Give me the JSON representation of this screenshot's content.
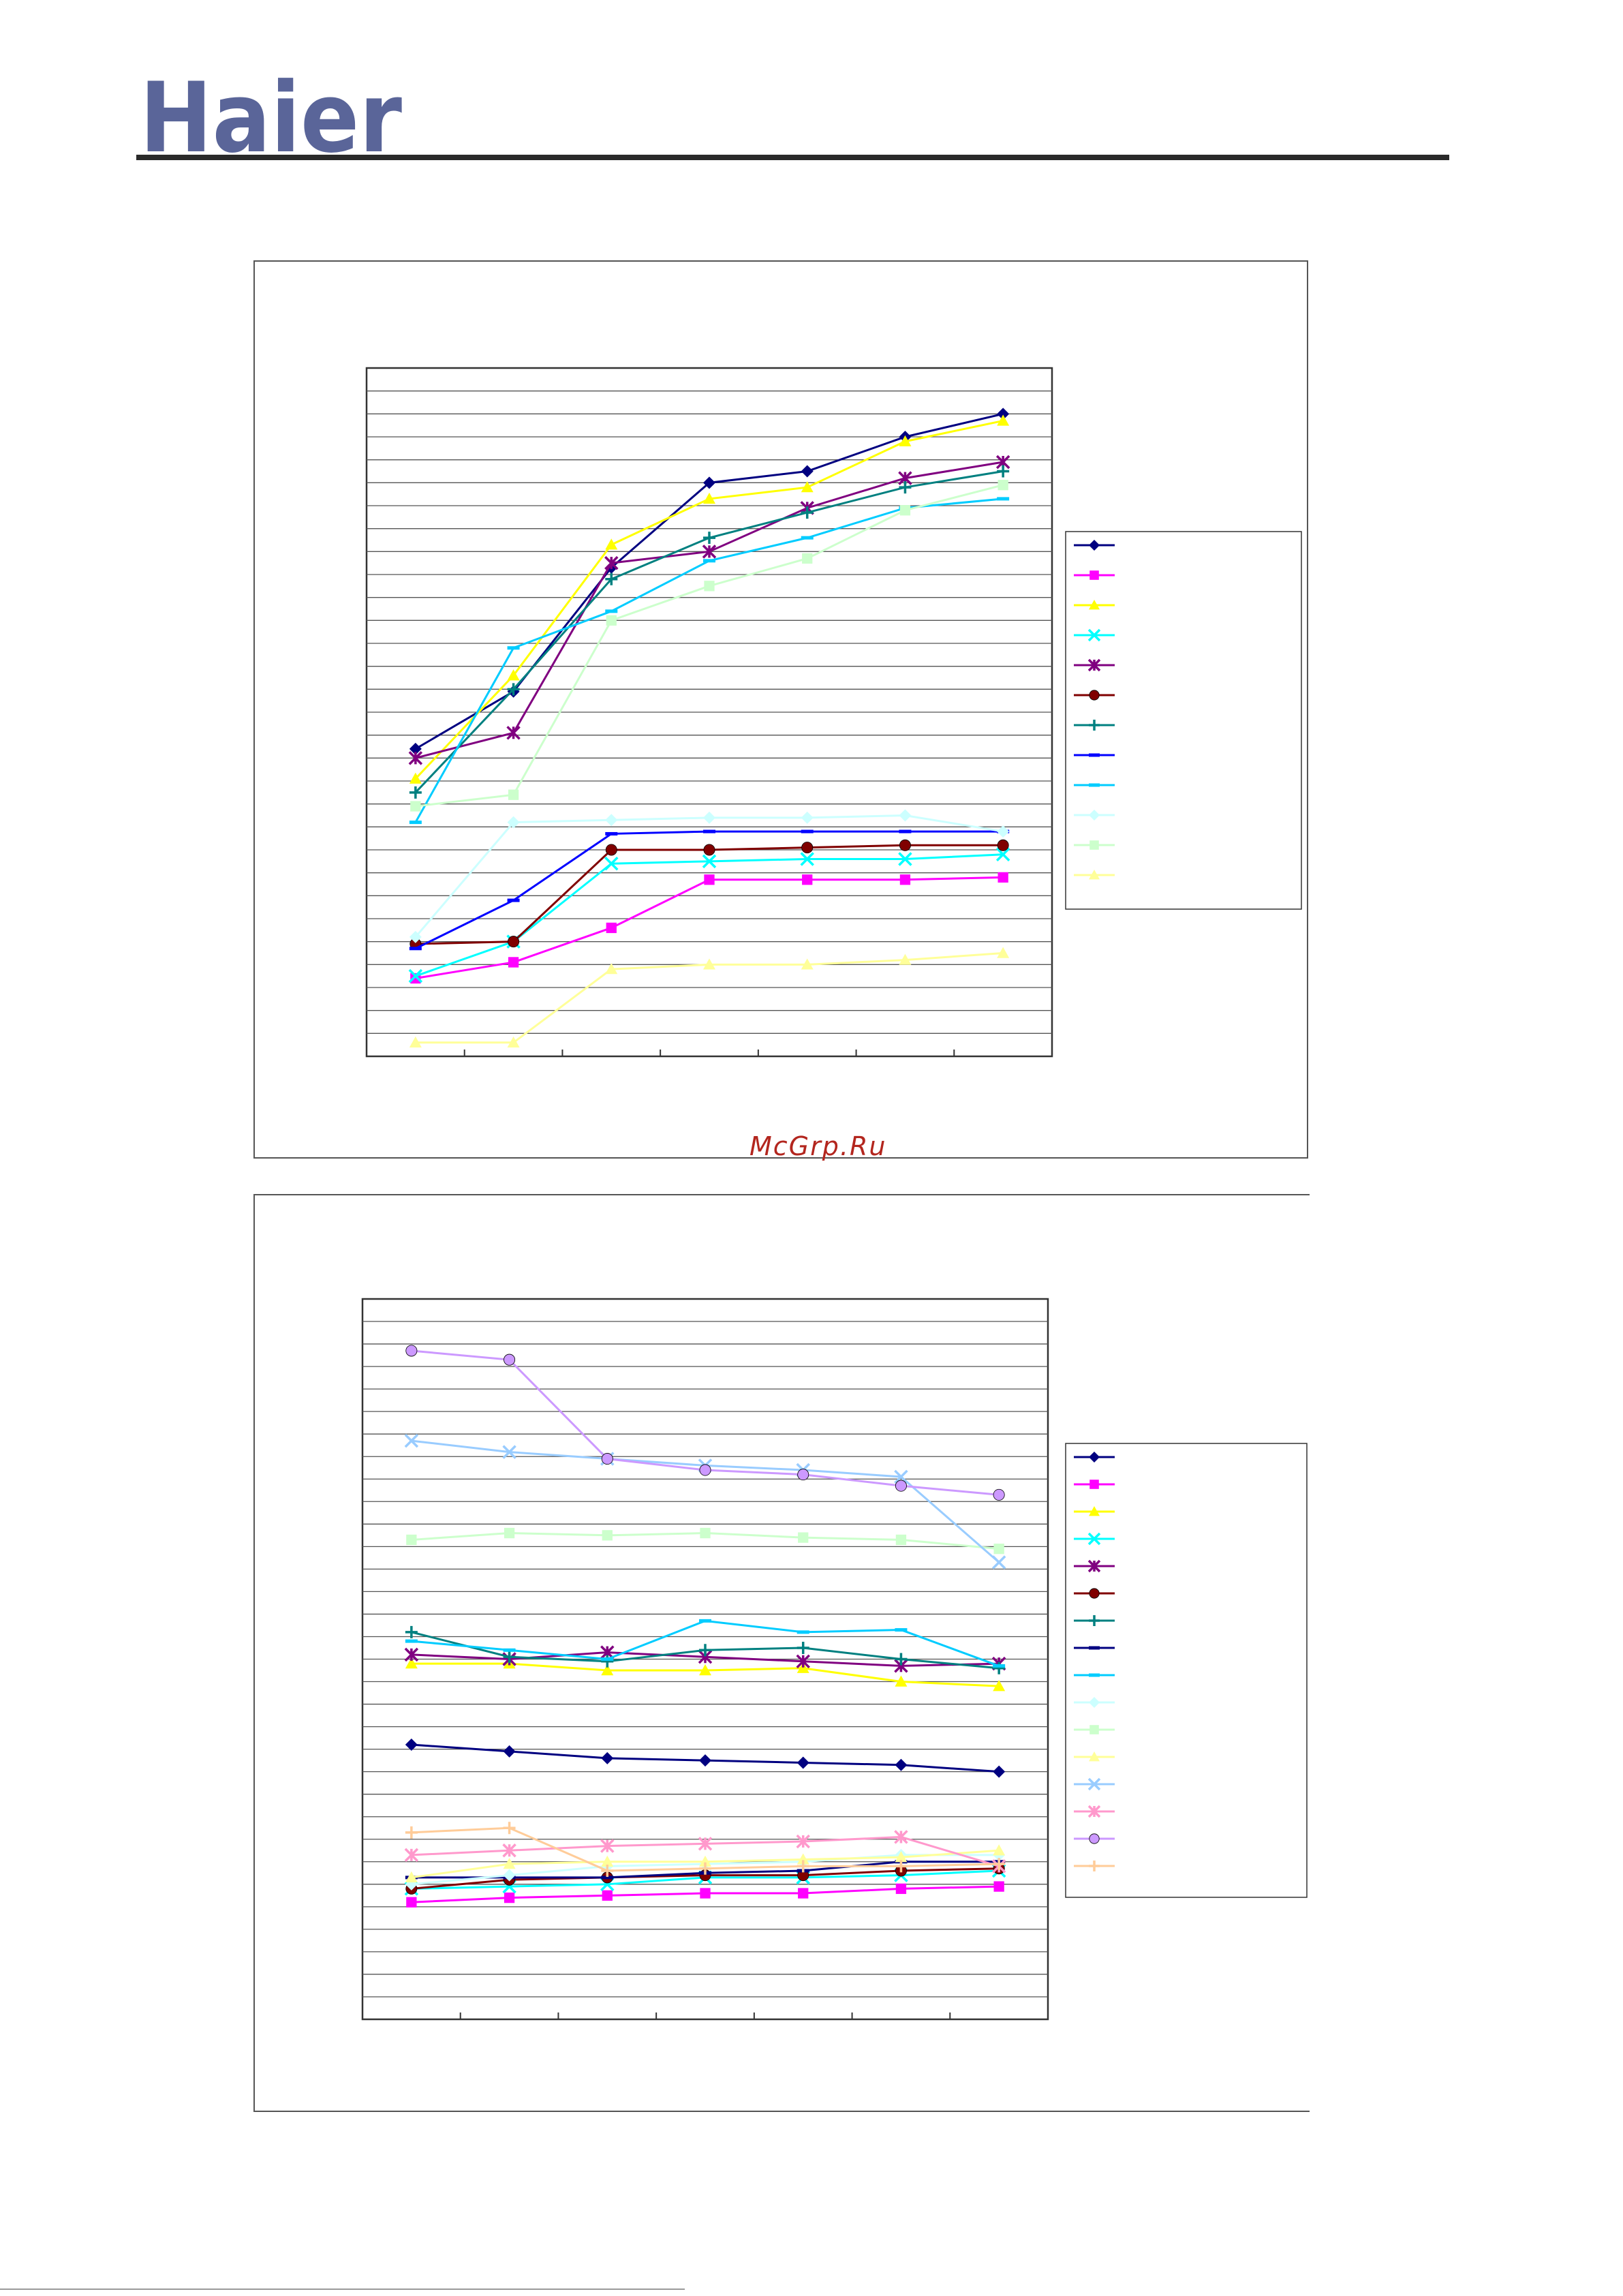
{
  "header": {
    "logo_text": "Haier",
    "logo_color": "#5a6599"
  },
  "watermark": "McGrp.Ru",
  "chart_data": [
    {
      "type": "line",
      "title": "",
      "xlabel": "",
      "ylabel": "",
      "x": [
        1,
        2,
        3,
        4,
        5,
        6,
        7
      ],
      "ylim": [
        0,
        30
      ],
      "grid": true,
      "legend": "right",
      "series": [
        {
          "marker": "diamond",
          "color": "#000080",
          "values": [
            13.4,
            15.9,
            21.3,
            25.0,
            25.5,
            27.0,
            28.0
          ]
        },
        {
          "marker": "square",
          "color": "#ff00ff",
          "values": [
            3.4,
            4.1,
            5.6,
            7.7,
            7.7,
            7.7,
            7.8
          ]
        },
        {
          "marker": "triangle",
          "color": "#ffff00",
          "values": [
            12.1,
            16.6,
            22.3,
            24.3,
            24.8,
            26.8,
            27.7
          ]
        },
        {
          "marker": "x",
          "color": "#00ffff",
          "values": [
            3.5,
            5.0,
            8.4,
            8.5,
            8.6,
            8.6,
            8.8
          ]
        },
        {
          "marker": "star",
          "color": "#800080",
          "values": [
            13.0,
            14.1,
            21.5,
            22.0,
            23.9,
            25.2,
            25.9
          ]
        },
        {
          "marker": "circle",
          "color": "#800000",
          "values": [
            4.9,
            5.0,
            9.0,
            9.0,
            9.1,
            9.2,
            9.2
          ]
        },
        {
          "marker": "plus",
          "color": "#008080",
          "values": [
            11.5,
            16.0,
            20.8,
            22.6,
            23.7,
            24.8,
            25.5
          ]
        },
        {
          "marker": "dash",
          "color": "#0000ff",
          "values": [
            4.7,
            6.8,
            9.7,
            9.8,
            9.8,
            9.8,
            9.8
          ]
        },
        {
          "marker": "dash",
          "color": "#00ccff",
          "values": [
            10.2,
            17.8,
            19.4,
            21.6,
            22.6,
            23.9,
            24.3
          ]
        },
        {
          "marker": "diamond",
          "color": "#ccffff",
          "values": [
            5.2,
            10.2,
            10.3,
            10.4,
            10.4,
            10.5,
            9.8
          ]
        },
        {
          "marker": "square",
          "color": "#ccffcc",
          "values": [
            10.9,
            11.4,
            19.0,
            20.5,
            21.7,
            23.8,
            24.9
          ]
        },
        {
          "marker": "triangle",
          "color": "#ffff99",
          "values": [
            0.6,
            0.6,
            3.8,
            4.0,
            4.0,
            4.2,
            4.5
          ]
        }
      ]
    },
    {
      "type": "line",
      "title": "",
      "xlabel": "",
      "ylabel": "",
      "x": [
        1,
        2,
        3,
        4,
        5,
        6,
        7
      ],
      "ylim": [
        0,
        32
      ],
      "grid": true,
      "legend": "right",
      "series": [
        {
          "marker": "diamond",
          "color": "#000080",
          "values": [
            12.2,
            11.9,
            11.6,
            11.5,
            11.4,
            11.3,
            11.0
          ]
        },
        {
          "marker": "square",
          "color": "#ff00ff",
          "values": [
            5.2,
            5.4,
            5.5,
            5.6,
            5.6,
            5.8,
            5.9
          ]
        },
        {
          "marker": "triangle",
          "color": "#ffff00",
          "values": [
            15.8,
            15.8,
            15.5,
            15.5,
            15.6,
            15.0,
            14.8
          ]
        },
        {
          "marker": "x",
          "color": "#00ffff",
          "values": [
            5.8,
            5.9,
            6.0,
            6.3,
            6.3,
            6.4,
            6.6
          ]
        },
        {
          "marker": "star",
          "color": "#800080",
          "values": [
            16.2,
            16.0,
            16.3,
            16.1,
            15.9,
            15.7,
            15.8
          ]
        },
        {
          "marker": "circle",
          "color": "#800000",
          "values": [
            5.8,
            6.2,
            6.3,
            6.4,
            6.4,
            6.6,
            6.7
          ]
        },
        {
          "marker": "plus",
          "color": "#008080",
          "values": [
            17.2,
            16.1,
            15.9,
            16.4,
            16.5,
            16.0,
            15.6
          ]
        },
        {
          "marker": "dash",
          "color": "#000080",
          "values": [
            6.3,
            6.3,
            6.3,
            6.5,
            6.6,
            7.0,
            7.0
          ]
        },
        {
          "marker": "dash",
          "color": "#00ccff",
          "values": [
            16.8,
            16.4,
            16.0,
            17.7,
            17.2,
            17.3,
            15.7
          ]
        },
        {
          "marker": "diamond",
          "color": "#ccffff",
          "values": [
            6.0,
            6.4,
            6.8,
            6.9,
            7.0,
            7.3,
            7.3
          ]
        },
        {
          "marker": "square",
          "color": "#ccffcc",
          "values": [
            21.3,
            21.6,
            21.5,
            21.6,
            21.4,
            21.3,
            20.9
          ]
        },
        {
          "marker": "triangle",
          "color": "#ffff99",
          "values": [
            6.3,
            6.9,
            7.0,
            7.0,
            7.1,
            7.2,
            7.5
          ]
        },
        {
          "marker": "x",
          "color": "#99ccff",
          "values": [
            25.7,
            25.2,
            24.9,
            24.6,
            24.4,
            24.1,
            20.3
          ]
        },
        {
          "marker": "star",
          "color": "#ff99cc",
          "values": [
            7.3,
            7.5,
            7.7,
            7.8,
            7.9,
            8.1,
            6.8
          ]
        },
        {
          "marker": "circle",
          "color": "#cc99ff",
          "values": [
            29.7,
            29.3,
            24.9,
            24.4,
            24.2,
            23.7,
            23.3
          ]
        },
        {
          "marker": "plus",
          "color": "#ffcc99",
          "values": [
            8.3,
            8.5,
            6.6,
            6.7,
            6.8,
            6.8,
            6.9
          ]
        }
      ]
    }
  ]
}
